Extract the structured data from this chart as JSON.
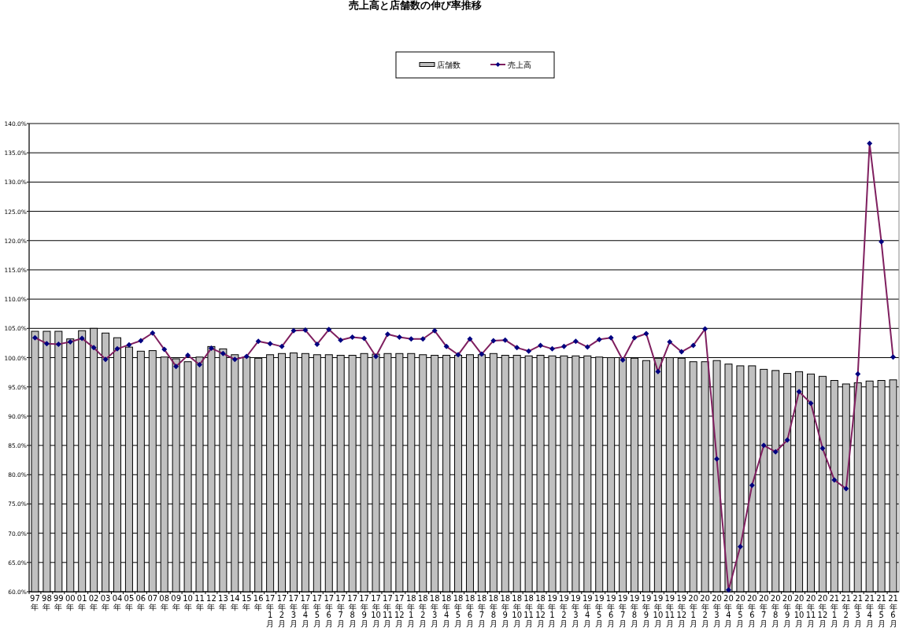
{
  "chart_data": {
    "type": "bar",
    "title": "売上高と店舗数の伸び率推移",
    "categories": [
      "97年",
      "98年",
      "99年",
      "00年",
      "01年",
      "02年",
      "03年",
      "04年",
      "05年",
      "06年",
      "07年",
      "08年",
      "09年",
      "10年",
      "11年",
      "12年",
      "13年",
      "14年",
      "15年",
      "16年",
      "17年1月",
      "17年2月",
      "17年3月",
      "17年4月",
      "17年5月",
      "17年6月",
      "17年7月",
      "17年8月",
      "17年9月",
      "17年10月",
      "17年11月",
      "17年12月",
      "18年1月",
      "18年2月",
      "18年3月",
      "18年4月",
      "18年5月",
      "18年6月",
      "18年7月",
      "18年8月",
      "18年9月",
      "18年10月",
      "18年11月",
      "18年12月",
      "19年1月",
      "19年2月",
      "19年3月",
      "19年4月",
      "19年5月",
      "19年6月",
      "19年7月",
      "19年8月",
      "19年9月",
      "19年10月",
      "19年11月",
      "19年12月",
      "20年1月",
      "20年2月",
      "20年3月",
      "20年4月",
      "20年5月",
      "20年6月",
      "20年7月",
      "20年8月",
      "20年9月",
      "20年10月",
      "20年11月",
      "20年12月",
      "21年1月",
      "21年2月",
      "21年3月",
      "21年4月",
      "21年5月",
      "21年6月"
    ],
    "series": [
      {
        "name": "店舗数",
        "color": "#c0c0c0",
        "values": [
          104.5,
          104.5,
          104.5,
          103.2,
          104.6,
          105.0,
          104.2,
          103.4,
          101.8,
          101.1,
          101.2,
          100.1,
          99.8,
          99.3,
          100.1,
          101.9,
          101.5,
          100.5,
          100.1,
          99.9,
          100.5,
          100.7,
          100.8,
          100.7,
          100.5,
          100.5,
          100.4,
          100.4,
          100.7,
          100.6,
          100.7,
          100.7,
          100.7,
          100.5,
          100.4,
          100.4,
          100.4,
          100.5,
          100.5,
          100.7,
          100.4,
          100.4,
          100.3,
          100.4,
          100.3,
          100.3,
          100.3,
          100.3,
          100.1,
          100.0,
          100.0,
          99.9,
          99.5,
          99.9,
          100.0,
          99.9,
          99.3,
          99.3,
          99.5,
          98.9,
          98.6,
          98.6,
          98.0,
          97.8,
          97.3,
          97.6,
          97.2,
          96.8,
          96.1,
          95.5,
          95.7,
          96.0,
          96.1,
          96.2
        ]
      },
      {
        "name": "売上高",
        "type": "line",
        "color": "#7f1f5f",
        "marker": "diamond",
        "values": [
          103.4,
          102.4,
          102.3,
          102.7,
          103.3,
          101.7,
          99.7,
          101.5,
          102.2,
          102.9,
          104.2,
          101.4,
          98.5,
          100.4,
          98.8,
          101.6,
          100.7,
          99.7,
          100.2,
          102.8,
          102.4,
          101.9,
          104.6,
          104.7,
          102.3,
          104.8,
          103.0,
          103.5,
          103.3,
          100.2,
          104.0,
          103.5,
          103.2,
          103.2,
          104.6,
          101.9,
          100.5,
          103.2,
          100.6,
          102.9,
          103.0,
          101.7,
          101.1,
          102.1,
          101.5,
          101.9,
          102.8,
          101.8,
          103.1,
          103.4,
          99.6,
          103.4,
          104.1,
          97.6,
          102.7,
          101.0,
          102.1,
          104.9,
          82.7,
          60.3,
          67.7,
          78.2,
          85.0,
          83.9,
          85.9,
          94.2,
          92.2,
          84.5,
          79.1,
          77.6,
          97.2,
          136.6,
          119.8,
          100.1
        ]
      }
    ],
    "ylim": [
      60,
      140
    ],
    "yticks": [
      {
        "value": 60,
        "label": "60.0%"
      },
      {
        "value": 65,
        "label": "65.0%"
      },
      {
        "value": 70,
        "label": "70.0%"
      },
      {
        "value": 75,
        "label": "75.0%"
      },
      {
        "value": 80,
        "label": "80.0%"
      },
      {
        "value": 85,
        "label": "85.0%"
      },
      {
        "value": 90,
        "label": "90.0%"
      },
      {
        "value": 95,
        "label": "95.0%"
      },
      {
        "value": 100,
        "label": "100.0%"
      },
      {
        "value": 105,
        "label": "105.0%"
      },
      {
        "value": 110,
        "label": "110.0%"
      },
      {
        "value": 115,
        "label": "115.0%"
      },
      {
        "value": 120,
        "label": "120.0%"
      },
      {
        "value": 125,
        "label": "125.0%"
      },
      {
        "value": 130,
        "label": "130.0%"
      },
      {
        "value": 135,
        "label": "135.0%"
      },
      {
        "value": 140,
        "label": "140.0%"
      }
    ],
    "grid": "y",
    "legend": "top"
  }
}
